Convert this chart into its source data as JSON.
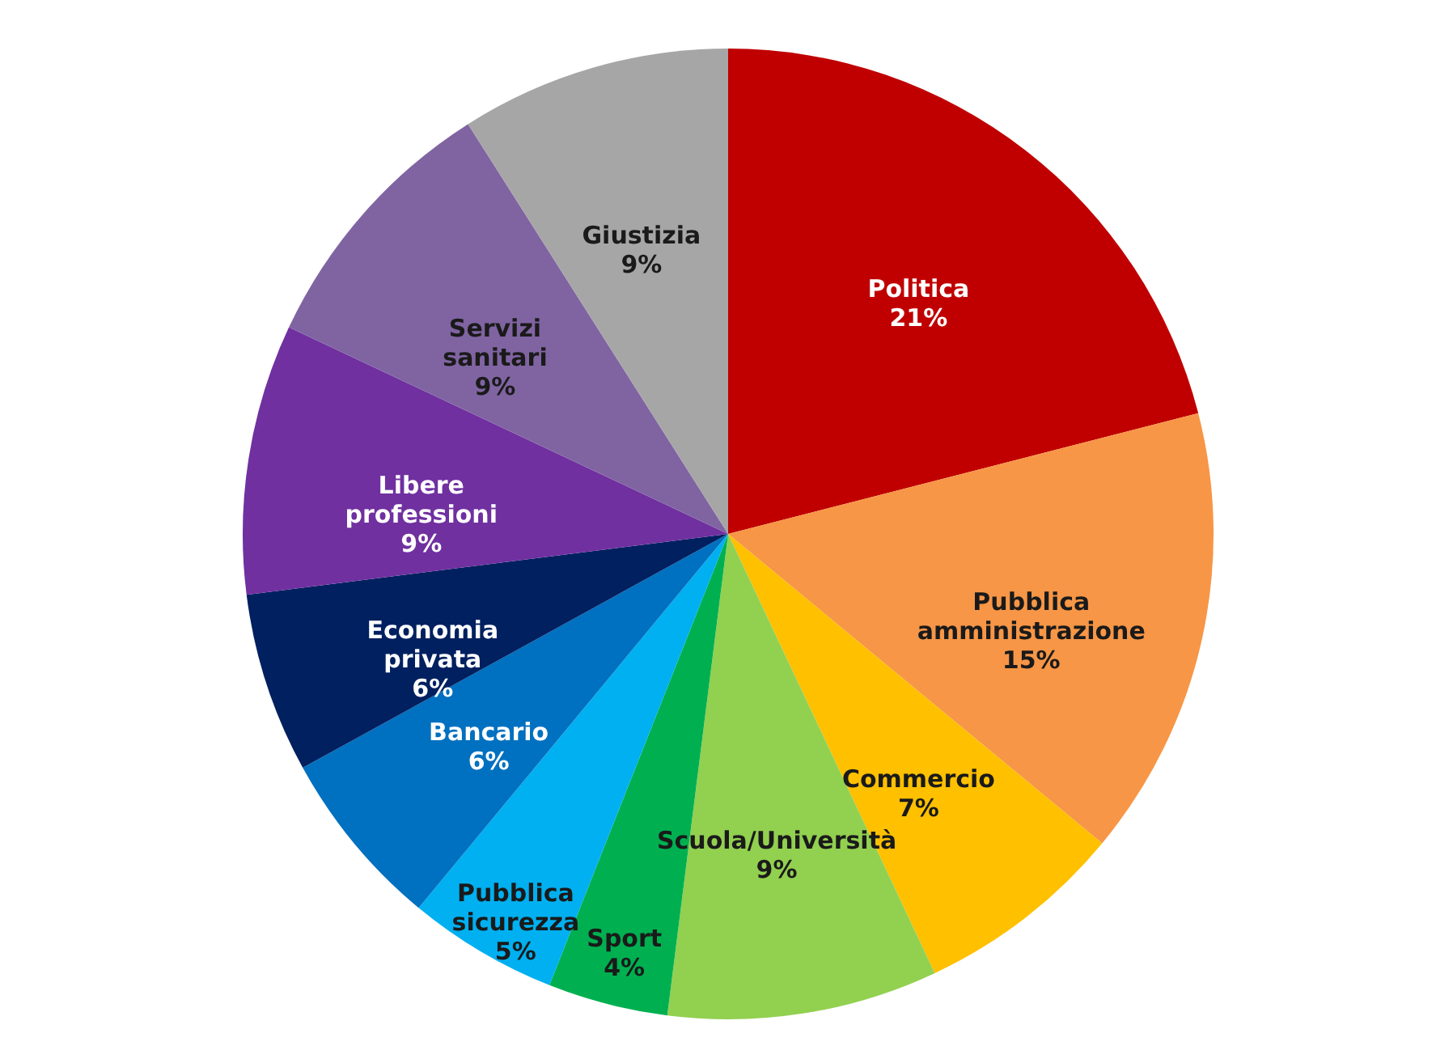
{
  "chart_data": {
    "type": "pie",
    "categories": [
      "Politica",
      "Pubblica amministrazione",
      "Commercio",
      "Scuola/Università",
      "Sport",
      "Pubblica sicurezza",
      "Bancario",
      "Economia privata",
      "Libere professioni",
      "Servizi sanitari",
      "Giustizia"
    ],
    "values": [
      21,
      15,
      7,
      9,
      4,
      5,
      6,
      6,
      9,
      9,
      9
    ],
    "value_labels": [
      "21%",
      "15%",
      "7%",
      "9%",
      "4%",
      "5%",
      "6%",
      "6%",
      "9%",
      "9%",
      "9%"
    ],
    "colors": [
      "#c00000",
      "#f79646",
      "#ffc000",
      "#92d050",
      "#00b050",
      "#00b0f0",
      "#0070c0",
      "#002060",
      "#7030a0",
      "#8064a2",
      "#a6a6a6"
    ]
  }
}
